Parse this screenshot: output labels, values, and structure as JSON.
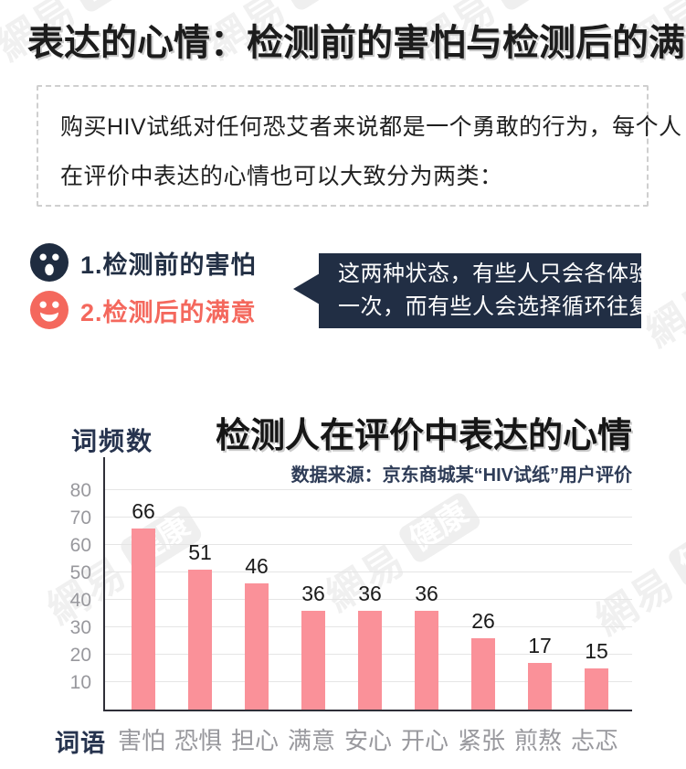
{
  "header": {
    "title": "表达的心情：检测前的害怕与检测后的满意"
  },
  "intro": {
    "lines": [
      "购买HIV试纸对任何恐艾者来说都是一个勇敢的行为，每个人",
      "在评价中表达的心情也可以大致分为两类："
    ]
  },
  "emotions": {
    "items": [
      {
        "icon": "scared-face-icon",
        "label": "1.检测前的害怕",
        "color": "#222f44"
      },
      {
        "icon": "smiley-face-icon",
        "label": "2.检测后的满意",
        "color": "#f4685d"
      }
    ]
  },
  "bubble": {
    "lines": [
      "这两种状态，有些人只会各体验",
      "一次，而有些人会选择循环往复。"
    ]
  },
  "chart_data": {
    "type": "bar",
    "title": "检测人在评价中表达的心情",
    "source": "数据来源：京东商城某“HIV试纸”用户评价",
    "y_axis_title": "词频数",
    "x_axis_title": "词语",
    "categories": [
      "害怕",
      "恐惧",
      "担心",
      "满意",
      "安心",
      "开心",
      "紧张",
      "煎熬",
      "忐忑"
    ],
    "values": [
      66,
      51,
      46,
      36,
      36,
      36,
      26,
      17,
      15
    ],
    "y_ticks": [
      80,
      70,
      60,
      50,
      40,
      30,
      20,
      10
    ],
    "ylim": [
      0,
      80
    ],
    "grid": true,
    "legend": "none",
    "bar_color": "#fa9199"
  },
  "watermark": {
    "text": "網易",
    "badge": "健康"
  },
  "colors": {
    "navy": "#212e44",
    "coral": "#f4685d",
    "bar_pink": "#fa9199",
    "gray_text": "#98989d",
    "grid_line": "#e5e5e5"
  }
}
